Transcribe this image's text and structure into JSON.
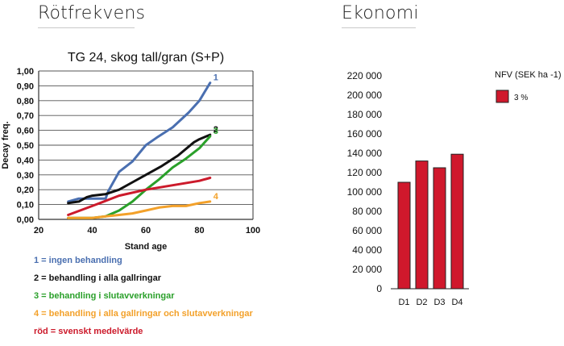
{
  "headings": {
    "left": "Rötfrekvens",
    "right": "Ekonomi"
  },
  "chart_data": [
    {
      "type": "line",
      "title": "TG 24, skog tall/gran (S+P)",
      "xlabel": "Stand age",
      "ylabel": "Decay freq.",
      "xlim": [
        20,
        100
      ],
      "ylim": [
        0,
        1.0
      ],
      "x_ticks": [
        "20",
        "40",
        "60",
        "80",
        "100"
      ],
      "y_ticks": [
        "0,00",
        "0,10",
        "0,20",
        "0,30",
        "0,40",
        "0,50",
        "0,60",
        "0,70",
        "0,80",
        "0,90",
        "1,00"
      ],
      "grid": "horizontal",
      "series": [
        {
          "name": "1",
          "color": "#4a6fb0",
          "x": [
            31,
            35,
            38,
            45,
            46,
            50,
            55,
            60,
            64,
            70,
            76,
            80,
            84
          ],
          "y": [
            0.12,
            0.14,
            0.14,
            0.14,
            0.19,
            0.32,
            0.39,
            0.5,
            0.55,
            0.62,
            0.72,
            0.8,
            0.92
          ]
        },
        {
          "name": "2",
          "color": "#111111",
          "x": [
            31,
            35,
            38,
            40,
            45,
            50,
            55,
            60,
            66,
            72,
            78,
            80,
            84
          ],
          "y": [
            0.11,
            0.12,
            0.15,
            0.16,
            0.17,
            0.2,
            0.25,
            0.3,
            0.36,
            0.43,
            0.52,
            0.54,
            0.57
          ]
        },
        {
          "name": "3",
          "color": "#2aa02a",
          "x": [
            31,
            40,
            45,
            50,
            55,
            60,
            65,
            70,
            75,
            80,
            84
          ],
          "y": [
            0.01,
            0.01,
            0.02,
            0.06,
            0.12,
            0.2,
            0.27,
            0.35,
            0.41,
            0.48,
            0.56
          ]
        },
        {
          "name": "4",
          "color": "#f3a12a",
          "x": [
            31,
            40,
            45,
            50,
            55,
            60,
            65,
            70,
            75,
            80,
            84
          ],
          "y": [
            0.01,
            0.01,
            0.02,
            0.03,
            0.04,
            0.06,
            0.08,
            0.09,
            0.09,
            0.11,
            0.12
          ]
        },
        {
          "color": "#cc1a2b",
          "x": [
            31,
            40,
            50,
            60,
            70,
            80,
            84
          ],
          "y": [
            0.03,
            0.09,
            0.16,
            0.2,
            0.23,
            0.26,
            0.28
          ]
        }
      ]
    },
    {
      "type": "bar",
      "categories": [
        "D1",
        "D2",
        "D3",
        "D4"
      ],
      "series": [
        {
          "name": "3 %",
          "color": "#d0182c",
          "values": [
            110000,
            132000,
            125000,
            139000
          ]
        }
      ],
      "ylim": [
        0,
        220000
      ],
      "y_ticks": [
        "0",
        "20 000",
        "40 000",
        "60 000",
        "80 000",
        "100 000",
        "120 000",
        "140 000",
        "160 000",
        "180 000",
        "200 000",
        "220 000"
      ],
      "legend_title": "NFV (SEK ha -1)",
      "legend_position": "top-right",
      "grid": "none"
    }
  ],
  "legend_texts": [
    {
      "text": "1 = ingen behandling",
      "color": "#4a6fb0"
    },
    {
      "text": "2 = behandling i alla gallringar",
      "color": "#111111"
    },
    {
      "text": "3 = behandling i slutavverkningar",
      "color": "#2aa02a"
    },
    {
      "text": "4 = behandling i alla gallringar och slutavverkningar",
      "color": "#f3a12a"
    },
    {
      "text": "röd = svenskt medelvärde",
      "color": "#cc1a2b"
    }
  ]
}
